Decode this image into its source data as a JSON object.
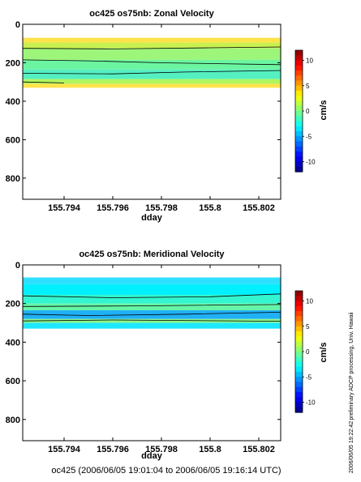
{
  "figure": {
    "footer": "oc425 (2006/06/05 19:01:04 to 2006/06/05 19:16:14 UTC)",
    "side_note": "preliminary ADCP processing,   Univ. Hawaii",
    "timestamp": "2006/06/05 19:22:42"
  },
  "chart_data": [
    {
      "type": "heatmap",
      "title": "oc425 os75nb: Zonal Velocity",
      "xlabel": "dday",
      "ylabel": "",
      "xlim": [
        155.7923,
        155.8029
      ],
      "ylim": [
        910,
        0
      ],
      "x_ticks": [
        155.794,
        155.796,
        155.798,
        155.8,
        155.802
      ],
      "x_ticklabels": [
        "155.794",
        "155.796",
        "155.798",
        "155.8",
        "155.802"
      ],
      "y_ticks": [
        0,
        200,
        400,
        600,
        800
      ],
      "y_ticklabels": [
        "0",
        "200",
        "400",
        "600",
        "800"
      ],
      "depth_data_range": [
        65,
        330
      ],
      "colorbar": {
        "label": "cm/s",
        "range": [
          -12,
          12
        ],
        "ticks": [
          10,
          5,
          0,
          -5,
          -10
        ],
        "ticklabels": [
          "10",
          "5",
          "0",
          "-5",
          "-10"
        ]
      },
      "bands": [
        {
          "depth_top": 70,
          "depth_bottom": 95,
          "color": "#ffe34a"
        },
        {
          "depth_top": 95,
          "depth_bottom": 125,
          "color": "#c8f050"
        },
        {
          "depth_top": 125,
          "depth_bottom": 185,
          "color": "#9df57a"
        },
        {
          "depth_top": 185,
          "depth_bottom": 235,
          "color": "#6cf5a0"
        },
        {
          "depth_top": 235,
          "depth_bottom": 285,
          "color": "#55f0c0"
        },
        {
          "depth_top": 285,
          "depth_bottom": 310,
          "color": "#b0f560"
        },
        {
          "depth_top": 310,
          "depth_bottom": 330,
          "color": "#ffe34a"
        }
      ],
      "contours": [
        {
          "x": [
            155.7923,
            155.796,
            155.8,
            155.8029
          ],
          "depth": [
            125,
            128,
            122,
            118
          ]
        },
        {
          "x": [
            155.7923,
            155.795,
            155.798,
            155.8029
          ],
          "depth": [
            185,
            190,
            200,
            210
          ]
        },
        {
          "x": [
            155.7923,
            155.796,
            155.799,
            155.8029
          ],
          "depth": [
            255,
            258,
            248,
            240
          ]
        },
        {
          "x": [
            155.7923,
            155.794
          ],
          "depth": [
            300,
            305
          ]
        }
      ]
    },
    {
      "type": "heatmap",
      "title": "oc425 os75nb: Meridional Velocity",
      "xlabel": "dday",
      "ylabel": "",
      "xlim": [
        155.7923,
        155.8029
      ],
      "ylim": [
        910,
        0
      ],
      "x_ticks": [
        155.794,
        155.796,
        155.798,
        155.8,
        155.802
      ],
      "x_ticklabels": [
        "155.794",
        "155.796",
        "155.798",
        "155.8",
        "155.802"
      ],
      "y_ticks": [
        0,
        200,
        400,
        600,
        800
      ],
      "y_ticklabels": [
        "0",
        "200",
        "400",
        "600",
        "800"
      ],
      "depth_data_range": [
        65,
        330
      ],
      "colorbar": {
        "label": "cm/s",
        "range": [
          -12,
          12
        ],
        "ticks": [
          10,
          5,
          0,
          -5,
          -10
        ],
        "ticklabels": [
          "10",
          "5",
          "0",
          "-5",
          "-10"
        ]
      },
      "bands": [
        {
          "depth_top": 65,
          "depth_bottom": 100,
          "color": "#2ee0ff"
        },
        {
          "depth_top": 100,
          "depth_bottom": 155,
          "color": "#00f0ff"
        },
        {
          "depth_top": 155,
          "depth_bottom": 200,
          "color": "#33f5d0"
        },
        {
          "depth_top": 200,
          "depth_bottom": 235,
          "color": "#66f5a8"
        },
        {
          "depth_top": 235,
          "depth_bottom": 280,
          "color": "#20b0f5"
        },
        {
          "depth_top": 280,
          "depth_bottom": 300,
          "color": "#8cf58a"
        },
        {
          "depth_top": 300,
          "depth_bottom": 330,
          "color": "#1ee8ff"
        }
      ],
      "contours": [
        {
          "x": [
            155.7923,
            155.796,
            155.8,
            155.8029
          ],
          "depth": [
            160,
            170,
            165,
            150
          ]
        },
        {
          "x": [
            155.7923,
            155.797,
            155.8029
          ],
          "depth": [
            215,
            212,
            205
          ]
        },
        {
          "x": [
            155.7923,
            155.795,
            155.799,
            155.8029
          ],
          "depth": [
            255,
            262,
            255,
            245
          ]
        },
        {
          "x": [
            155.7923,
            155.796,
            155.8029
          ],
          "depth": [
            290,
            285,
            292
          ]
        }
      ]
    }
  ]
}
